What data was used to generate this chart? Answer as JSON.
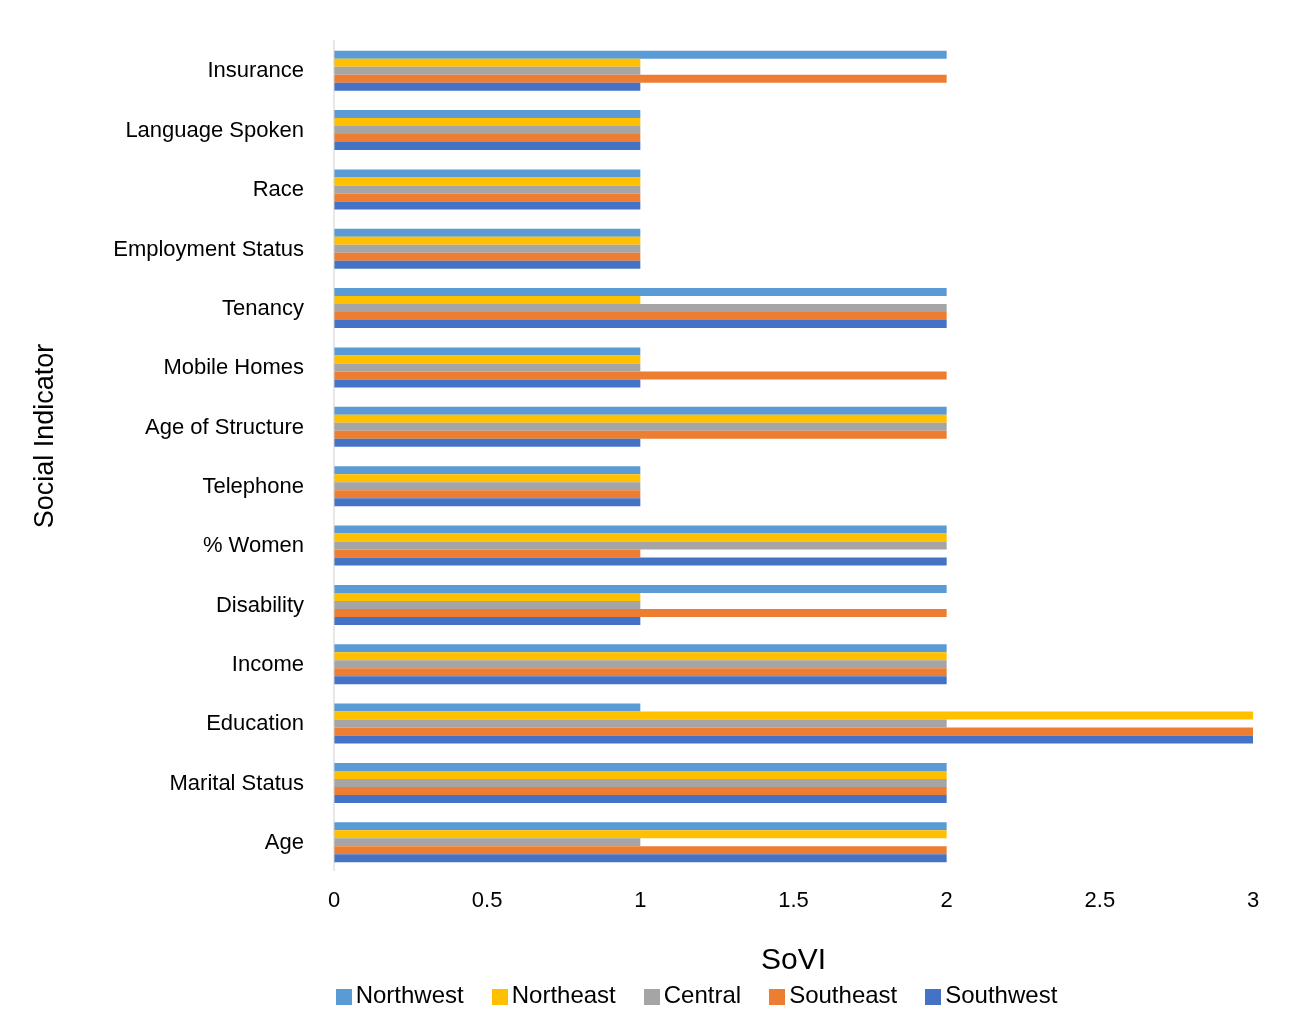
{
  "chart_data": {
    "type": "bar",
    "orientation": "horizontal",
    "xlabel": "SoVI",
    "ylabel": "Social Indicator",
    "categories": [
      "Insurance",
      "Language Spoken",
      "Race",
      "Employment Status",
      "Tenancy",
      "Mobile Homes",
      "Age of Structure",
      "Telephone",
      "% Women",
      "Disability",
      "Income",
      "Education",
      "Marital Status",
      "Age"
    ],
    "series": [
      {
        "name": "Northwest",
        "color": "#5b9bd5",
        "values": [
          2,
          1,
          1,
          1,
          2,
          1,
          2,
          1,
          2,
          2,
          2,
          1,
          2,
          2
        ]
      },
      {
        "name": "Northeast",
        "color": "#ffc000",
        "values": [
          1,
          1,
          1,
          1,
          1,
          1,
          2,
          1,
          2,
          1,
          2,
          3,
          2,
          2
        ]
      },
      {
        "name": "Central",
        "color": "#a5a5a5",
        "values": [
          1,
          1,
          1,
          1,
          2,
          1,
          2,
          1,
          2,
          1,
          2,
          2,
          2,
          1
        ]
      },
      {
        "name": "Southeast",
        "color": "#ed7d31",
        "values": [
          2,
          1,
          1,
          1,
          2,
          2,
          2,
          1,
          1,
          2,
          2,
          3,
          2,
          2
        ]
      },
      {
        "name": "Southwest",
        "color": "#4472c4",
        "values": [
          1,
          1,
          1,
          1,
          2,
          1,
          1,
          1,
          2,
          1,
          2,
          3,
          2,
          2
        ]
      }
    ],
    "xlim": [
      0,
      3
    ],
    "xticks": [
      0,
      0.5,
      1,
      1.5,
      2,
      2.5,
      3
    ],
    "grid": false,
    "legend": "bottom"
  }
}
